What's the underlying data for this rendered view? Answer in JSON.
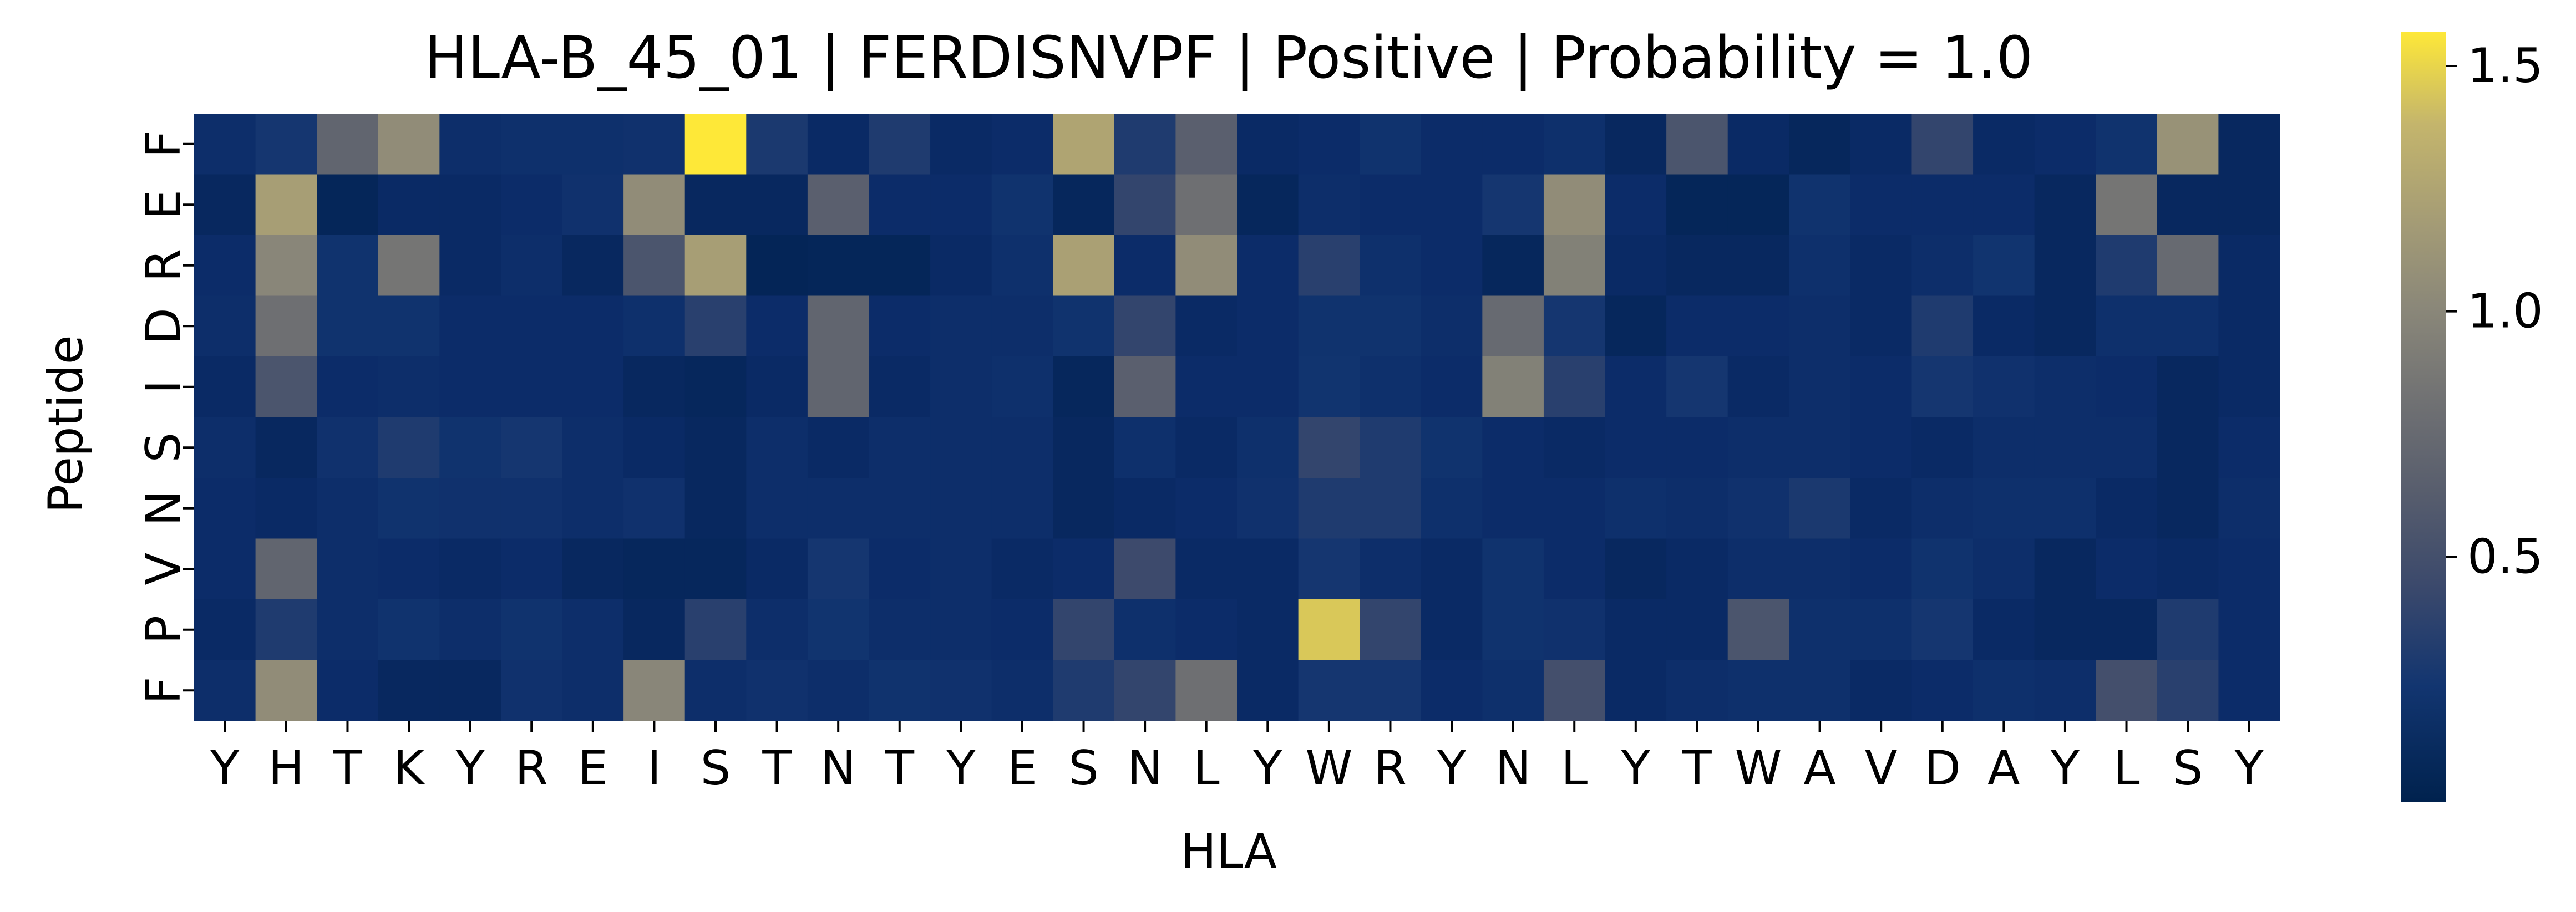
{
  "chart_data": {
    "type": "heatmap",
    "title": "HLA-B_45_01 | FERDISNVPF | Positive | Probability = 1.0",
    "xlabel": "HLA",
    "ylabel": "Peptide",
    "x_tick_labels": [
      "Y",
      "H",
      "T",
      "K",
      "Y",
      "R",
      "E",
      "I",
      "S",
      "T",
      "N",
      "T",
      "Y",
      "E",
      "S",
      "N",
      "L",
      "Y",
      "W",
      "R",
      "Y",
      "N",
      "L",
      "Y",
      "T",
      "W",
      "A",
      "V",
      "D",
      "A",
      "Y",
      "L",
      "S",
      "Y"
    ],
    "y_tick_labels": [
      "F",
      "E",
      "R",
      "D",
      "I",
      "S",
      "N",
      "V",
      "P",
      "F"
    ],
    "colormap": "cividis",
    "value_range": [
      0.0,
      1.57
    ],
    "colorbar_ticks": [
      "0.5",
      "1.0",
      "1.5"
    ],
    "colorbar_tick_values": [
      0.5,
      1.0,
      1.5
    ],
    "values": [
      [
        0.12,
        0.25,
        0.7,
        1.05,
        0.12,
        0.15,
        0.15,
        0.18,
        1.57,
        0.28,
        0.08,
        0.3,
        0.08,
        0.1,
        1.25,
        0.3,
        0.65,
        0.08,
        0.1,
        0.2,
        0.1,
        0.1,
        0.15,
        0.06,
        0.55,
        0.08,
        0.05,
        0.08,
        0.4,
        0.08,
        0.1,
        0.2,
        1.1,
        0.06
      ],
      [
        0.06,
        1.2,
        0.04,
        0.08,
        0.08,
        0.1,
        0.18,
        1.05,
        0.06,
        0.06,
        0.65,
        0.1,
        0.1,
        0.2,
        0.05,
        0.4,
        0.8,
        0.05,
        0.12,
        0.1,
        0.1,
        0.25,
        1.05,
        0.1,
        0.04,
        0.04,
        0.2,
        0.1,
        0.1,
        0.1,
        0.06,
        0.85,
        0.06,
        0.06
      ],
      [
        0.1,
        1.0,
        0.2,
        0.85,
        0.08,
        0.12,
        0.06,
        0.55,
        1.2,
        0.03,
        0.04,
        0.04,
        0.08,
        0.15,
        1.22,
        0.1,
        1.05,
        0.1,
        0.35,
        0.15,
        0.1,
        0.05,
        0.95,
        0.08,
        0.06,
        0.06,
        0.15,
        0.08,
        0.12,
        0.22,
        0.06,
        0.3,
        0.75,
        0.08
      ],
      [
        0.12,
        0.8,
        0.2,
        0.2,
        0.1,
        0.1,
        0.1,
        0.15,
        0.35,
        0.1,
        0.7,
        0.1,
        0.12,
        0.12,
        0.2,
        0.4,
        0.08,
        0.1,
        0.2,
        0.2,
        0.12,
        0.75,
        0.25,
        0.05,
        0.1,
        0.1,
        0.12,
        0.08,
        0.3,
        0.08,
        0.06,
        0.15,
        0.15,
        0.08
      ],
      [
        0.08,
        0.55,
        0.1,
        0.12,
        0.1,
        0.1,
        0.1,
        0.06,
        0.05,
        0.08,
        0.7,
        0.08,
        0.12,
        0.15,
        0.05,
        0.65,
        0.1,
        0.1,
        0.22,
        0.15,
        0.1,
        0.95,
        0.35,
        0.1,
        0.25,
        0.08,
        0.12,
        0.1,
        0.25,
        0.18,
        0.12,
        0.1,
        0.06,
        0.08
      ],
      [
        0.12,
        0.06,
        0.18,
        0.3,
        0.2,
        0.25,
        0.12,
        0.08,
        0.06,
        0.12,
        0.08,
        0.12,
        0.12,
        0.12,
        0.06,
        0.15,
        0.08,
        0.15,
        0.4,
        0.3,
        0.2,
        0.1,
        0.08,
        0.1,
        0.1,
        0.12,
        0.12,
        0.1,
        0.08,
        0.12,
        0.12,
        0.12,
        0.06,
        0.1
      ],
      [
        0.1,
        0.08,
        0.12,
        0.2,
        0.18,
        0.18,
        0.12,
        0.18,
        0.06,
        0.12,
        0.12,
        0.12,
        0.12,
        0.12,
        0.06,
        0.08,
        0.1,
        0.18,
        0.3,
        0.3,
        0.15,
        0.1,
        0.1,
        0.15,
        0.12,
        0.18,
        0.28,
        0.08,
        0.12,
        0.15,
        0.15,
        0.08,
        0.06,
        0.12
      ],
      [
        0.1,
        0.7,
        0.12,
        0.1,
        0.08,
        0.1,
        0.06,
        0.05,
        0.05,
        0.08,
        0.25,
        0.1,
        0.12,
        0.08,
        0.1,
        0.45,
        0.08,
        0.08,
        0.25,
        0.12,
        0.08,
        0.2,
        0.1,
        0.06,
        0.08,
        0.12,
        0.12,
        0.1,
        0.2,
        0.12,
        0.06,
        0.1,
        0.08,
        0.1
      ],
      [
        0.08,
        0.3,
        0.12,
        0.2,
        0.12,
        0.2,
        0.12,
        0.06,
        0.35,
        0.12,
        0.22,
        0.12,
        0.12,
        0.1,
        0.4,
        0.15,
        0.1,
        0.08,
        1.45,
        0.4,
        0.08,
        0.2,
        0.18,
        0.08,
        0.08,
        0.55,
        0.15,
        0.15,
        0.25,
        0.08,
        0.06,
        0.06,
        0.3,
        0.1
      ],
      [
        0.12,
        1.05,
        0.1,
        0.06,
        0.06,
        0.18,
        0.12,
        1.0,
        0.12,
        0.18,
        0.12,
        0.2,
        0.18,
        0.12,
        0.3,
        0.4,
        0.8,
        0.08,
        0.25,
        0.25,
        0.1,
        0.15,
        0.5,
        0.08,
        0.12,
        0.15,
        0.15,
        0.08,
        0.1,
        0.15,
        0.12,
        0.5,
        0.35,
        0.1
      ]
    ]
  }
}
